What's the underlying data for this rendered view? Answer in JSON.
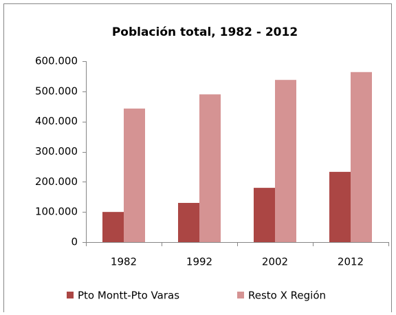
{
  "chart_data": {
    "type": "bar",
    "title": "Población total, 1982 - 2012",
    "categories": [
      "1982",
      "1992",
      "2002",
      "2012"
    ],
    "series": [
      {
        "name": "Pto Montt-Pto Varas",
        "color": "#ab4644",
        "values": [
          100000,
          130000,
          180000,
          233000
        ]
      },
      {
        "name": "Resto X Región",
        "color": "#d59393",
        "values": [
          443000,
          490000,
          538000,
          564000
        ]
      }
    ],
    "ylim": [
      0,
      600000
    ],
    "yticks": [
      0,
      {
        "value": 100000,
        "label": "100.000"
      },
      {
        "value": 200000,
        "label": "200.000"
      },
      {
        "value": 300000,
        "label": "300.000"
      },
      {
        "value": 400000,
        "label": "400.000"
      },
      {
        "value": 500000,
        "label": "500.000"
      },
      {
        "value": 600000,
        "label": "600.000"
      }
    ],
    "grid": false,
    "legend": "bottom"
  }
}
